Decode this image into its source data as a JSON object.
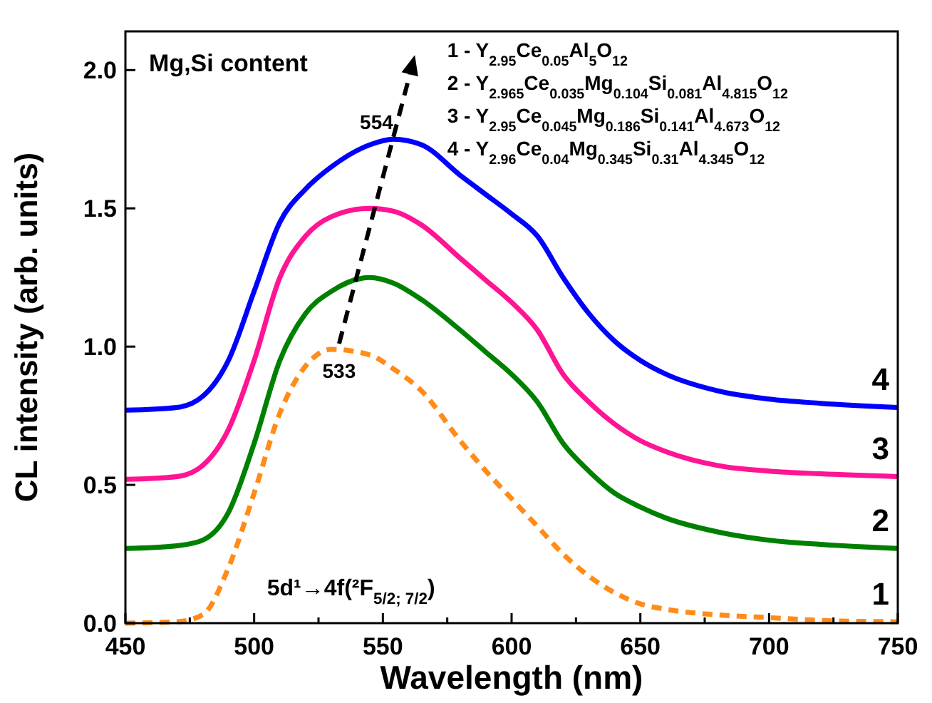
{
  "chart_data": {
    "type": "line",
    "xlabel": "Wavelength (nm)",
    "ylabel": "CL intensity (arb. units)",
    "xlim": [
      450,
      750
    ],
    "ylim": [
      0,
      2.14
    ],
    "xticks": [
      450,
      {
        "value": 475,
        "label": null
      },
      500,
      {
        "value": 525,
        "label": null
      },
      550,
      {
        "value": 575,
        "label": null
      },
      600,
      {
        "value": 625,
        "label": null
      },
      650,
      {
        "value": 675,
        "label": null
      },
      700,
      {
        "value": 725,
        "label": null
      },
      750
    ],
    "yticks": [
      {
        "value": 0,
        "label": "0.0"
      },
      {
        "value": 0.5,
        "label": "0.5"
      },
      {
        "value": 1,
        "label": "1.0"
      },
      {
        "value": 1.5,
        "label": "1.5"
      },
      {
        "value": 2,
        "label": "2.0"
      }
    ],
    "grid": false,
    "marker": "none",
    "x": [
      450,
      470,
      480,
      490,
      500,
      510,
      520,
      530,
      545,
      554,
      565,
      580,
      590,
      600,
      610,
      620,
      630,
      640,
      650,
      660,
      680,
      700,
      720,
      750
    ],
    "series": [
      {
        "name": "1",
        "color": "#ff8c1a",
        "line_style": "dashed",
        "values": [
          0,
          0.005,
          0.03,
          0.2,
          0.47,
          0.76,
          0.93,
          0.99,
          0.97,
          0.92,
          0.84,
          0.66,
          0.55,
          0.45,
          0.35,
          0.25,
          0.17,
          0.11,
          0.07,
          0.05,
          0.03,
          0.02,
          0.01,
          0.005
        ]
      },
      {
        "name": "2",
        "color": "#008000",
        "line_style": "solid",
        "values": [
          0.27,
          0.28,
          0.3,
          0.4,
          0.65,
          0.95,
          1.12,
          1.2,
          1.25,
          1.23,
          1.17,
          1.06,
          0.98,
          0.9,
          0.8,
          0.65,
          0.55,
          0.47,
          0.42,
          0.38,
          0.33,
          0.3,
          0.285,
          0.27
        ]
      },
      {
        "name": "3",
        "color": "#ff1493",
        "line_style": "solid",
        "values": [
          0.52,
          0.53,
          0.57,
          0.7,
          0.95,
          1.25,
          1.4,
          1.47,
          1.5,
          1.49,
          1.44,
          1.32,
          1.24,
          1.16,
          1.06,
          0.9,
          0.8,
          0.72,
          0.66,
          0.62,
          0.57,
          0.55,
          0.54,
          0.53
        ]
      },
      {
        "name": "4",
        "color": "#0000ff",
        "line_style": "solid",
        "values": [
          0.77,
          0.78,
          0.82,
          0.95,
          1.2,
          1.45,
          1.57,
          1.65,
          1.73,
          1.75,
          1.73,
          1.62,
          1.55,
          1.48,
          1.4,
          1.25,
          1.12,
          1.02,
          0.95,
          0.9,
          0.84,
          0.81,
          0.795,
          0.78
        ]
      }
    ],
    "annotations": [
      {
        "text": "554",
        "x": 554,
        "y": 1.75
      },
      {
        "text": "533",
        "x": 533,
        "y": 0.99
      },
      "Mg,Si content",
      "1 - Y$_{2.95}$Ce$_{0.05}$Al$_{5}$O$_{12}$",
      "2 - Y$_{2.965}$Ce$_{0.035}$Mg$_{0.104}$Si$_{0.081}$Al$_{4.815}$O$_{12}$",
      "3 - Y$_{2.95}$Ce$_{0.045}$Mg$_{0.186}$Si$_{0.141}$Al$_{4.673}$O$_{12}$",
      "4 - Y$_{2.96}$Ce$_{0.04}$Mg$_{0.345}$Si$_{0.31}$Al$_{4.345}$O$_{12}$",
      "5d¹→4f(²F$_{5/2; 7/2}$)"
    ]
  }
}
